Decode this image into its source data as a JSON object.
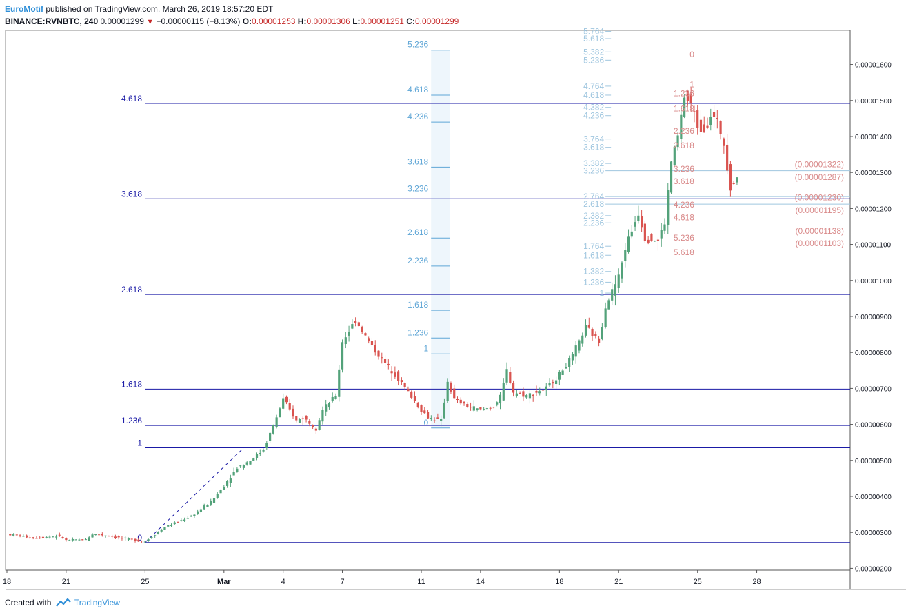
{
  "header": {
    "author": "EuroMotif",
    "published_text": "published on TradingView.com, March 26, 2019 18:57:20 EDT",
    "symbol": "BINANCE:RVNBTC, 240",
    "last": "0.00001299",
    "change": "−0.00000115 (−8.13%)",
    "o_label": "O:",
    "o_value": "0.00001253",
    "h_label": "H:",
    "h_value": "0.00001306",
    "l_label": "L:",
    "l_value": "0.00001251",
    "c_label": "C:",
    "c_value": "0.00001299"
  },
  "footer": {
    "created_with": "Created with",
    "brand": "TradingView"
  },
  "colors": {
    "up": "#53a27a",
    "down": "#d9534f",
    "fib_major": "#1a1aa6",
    "fib_mid": "#5fa6d6",
    "fib_pale": "#9fc6df",
    "fib_pink": "#d98a8a",
    "axis_text": "#131722",
    "grid_bg": "#ffffff",
    "highlight_band": "#eef6fc"
  },
  "chart_data": {
    "type": "candlestick",
    "symbol": "RVNBTC",
    "exchange": "BINANCE",
    "interval": "240",
    "ylim": [
      1.95e-06,
      1.695e-05
    ],
    "y_ticks": [
      "0.00001600",
      "0.00001500",
      "0.00001400",
      "0.00001300",
      "0.00001200",
      "0.00001100",
      "0.00001000",
      "0.00000900",
      "0.00000800",
      "0.00000700",
      "0.00000600",
      "0.00000500",
      "0.00000400",
      "0.00000300",
      "0.00000200"
    ],
    "y_tick_values": [
      1.6e-05,
      1.5e-05,
      1.4e-05,
      1.3e-05,
      1.2e-05,
      1.1e-05,
      1e-05,
      9e-06,
      8e-06,
      7e-06,
      6e-06,
      5e-06,
      4e-06,
      3e-06,
      2e-06
    ],
    "x_tick_labels": [
      "18",
      "21",
      "25",
      "Mar",
      "4",
      "7",
      "11",
      "14",
      "18",
      "21",
      "25",
      "28"
    ],
    "x_tick_bars": [
      0,
      18,
      42,
      66,
      84,
      102,
      126,
      144,
      168,
      186,
      210,
      228
    ],
    "bar_count": 240,
    "fib_extension_1": {
      "anchors": [
        {
          "bar": 42,
          "price": 2.72e-06
        },
        {
          "bar": 72,
          "price": 5.35e-06
        }
      ],
      "levels": [
        {
          "label": "0",
          "price": 2.72e-06
        },
        {
          "label": "1",
          "price": 5.35e-06
        },
        {
          "label": "1.236",
          "price": 5.97e-06
        },
        {
          "label": "1.618",
          "price": 6.98e-06
        },
        {
          "label": "2.618",
          "price": 9.61e-06
        },
        {
          "label": "3.618",
          "price": 1.227e-05
        },
        {
          "label": "4.618",
          "price": 1.492e-05
        }
      ]
    },
    "fib_extension_2": {
      "levels": [
        {
          "label": "0",
          "price": 5.9e-06
        },
        {
          "label": "1",
          "price": 7.96e-06
        },
        {
          "label": "1.236",
          "price": 8.4e-06
        },
        {
          "label": "1.618",
          "price": 9.17e-06
        },
        {
          "label": "2.236",
          "price": 1.04e-05
        },
        {
          "label": "2.618",
          "price": 1.118e-05
        },
        {
          "label": "3.236",
          "price": 1.24e-05
        },
        {
          "label": "3.618",
          "price": 1.315e-05
        },
        {
          "label": "4.236",
          "price": 1.44e-05
        },
        {
          "label": "4.618",
          "price": 1.515e-05
        },
        {
          "label": "5.236",
          "price": 1.64e-05
        }
      ]
    },
    "fib_extension_3": {
      "levels": [
        {
          "label": "1",
          "price": 9.65e-06
        },
        {
          "label": "1.236",
          "price": 9.95e-06
        },
        {
          "label": "1.382",
          "price": 1.025e-05
        },
        {
          "label": "1.618",
          "price": 1.07e-05
        },
        {
          "label": "1.764",
          "price": 1.095e-05
        },
        {
          "label": "2.236",
          "price": 1.16e-05
        },
        {
          "label": "2.382",
          "price": 1.18e-05
        },
        {
          "label": "2.618",
          "price": 1.212e-05
        },
        {
          "label": "2.764",
          "price": 1.233e-05
        },
        {
          "label": "3.236",
          "price": 1.305e-05
        },
        {
          "label": "3.382",
          "price": 1.325e-05
        },
        {
          "label": "3.618",
          "price": 1.37e-05
        },
        {
          "label": "3.764",
          "price": 1.393e-05
        },
        {
          "label": "4.236",
          "price": 1.458e-05
        },
        {
          "label": "4.382",
          "price": 1.481e-05
        },
        {
          "label": "4.618",
          "price": 1.515e-05
        },
        {
          "label": "4.764",
          "price": 1.54e-05
        },
        {
          "label": "5.236",
          "price": 1.612e-05
        },
        {
          "label": "5.382",
          "price": 1.635e-05
        },
        {
          "label": "5.618",
          "price": 1.672e-05
        },
        {
          "label": "5.764",
          "price": 1.692e-05
        }
      ]
    },
    "fib_retracement": {
      "levels": [
        {
          "label": "0",
          "price": 1.628e-05
        },
        {
          "label": "1",
          "price": 1.545e-05
        },
        {
          "label": "1.236",
          "price": 1.52e-05
        },
        {
          "label": "1.618",
          "price": 1.478e-05
        },
        {
          "label": "2.236",
          "price": 1.415e-05
        },
        {
          "label": "2.618",
          "price": 1.375e-05
        },
        {
          "label": "3.236",
          "price": 1.31e-05
        },
        {
          "label": "3.618",
          "price": 1.275e-05
        },
        {
          "label": "4.236",
          "price": 1.21e-05
        },
        {
          "label": "4.618",
          "price": 1.175e-05
        },
        {
          "label": "5.236",
          "price": 1.118e-05
        },
        {
          "label": "5.618",
          "price": 1.078e-05
        }
      ],
      "price_labels": [
        {
          "text": "(0.00001322)",
          "price": 1.322e-05
        },
        {
          "text": "(0.00001287)",
          "price": 1.287e-05
        },
        {
          "text": "(0.00001230)",
          "price": 1.23e-05
        },
        {
          "text": "(0.00001195)",
          "price": 1.195e-05
        },
        {
          "text": "(0.00001138)",
          "price": 1.138e-05
        },
        {
          "text": "(0.00001103)",
          "price": 1.103e-05
        }
      ]
    },
    "waypoints": [
      [
        0,
        2.95
      ],
      [
        8,
        2.85
      ],
      [
        16,
        2.9
      ],
      [
        18,
        2.78
      ],
      [
        24,
        2.8
      ],
      [
        26,
        2.95
      ],
      [
        30,
        2.92
      ],
      [
        36,
        2.82
      ],
      [
        42,
        2.75
      ],
      [
        48,
        3.15
      ],
      [
        56,
        3.45
      ],
      [
        62,
        3.85
      ],
      [
        66,
        4.3
      ],
      [
        70,
        4.8
      ],
      [
        74,
        5.0
      ],
      [
        78,
        5.3
      ],
      [
        82,
        6.2
      ],
      [
        84,
        6.7
      ],
      [
        88,
        6.1
      ],
      [
        90,
        6.2
      ],
      [
        94,
        5.9
      ],
      [
        96,
        6.4
      ],
      [
        100,
        6.8
      ],
      [
        102,
        8.3
      ],
      [
        106,
        8.9
      ],
      [
        110,
        8.3
      ],
      [
        114,
        7.8
      ],
      [
        118,
        7.4
      ],
      [
        122,
        6.9
      ],
      [
        126,
        6.4
      ],
      [
        128,
        6.2
      ],
      [
        132,
        6.1
      ],
      [
        134,
        7.2
      ],
      [
        136,
        6.7
      ],
      [
        140,
        6.5
      ],
      [
        144,
        6.4
      ],
      [
        148,
        6.5
      ],
      [
        150,
        6.75
      ],
      [
        152,
        7.5
      ],
      [
        154,
        6.9
      ],
      [
        158,
        6.8
      ],
      [
        164,
        7.0
      ],
      [
        168,
        7.4
      ],
      [
        172,
        7.9
      ],
      [
        176,
        8.7
      ],
      [
        180,
        8.3
      ],
      [
        182,
        9.3
      ],
      [
        186,
        10.1
      ],
      [
        188,
        10.9
      ],
      [
        192,
        11.9
      ],
      [
        194,
        11.2
      ],
      [
        198,
        11.1
      ],
      [
        200,
        11.6
      ],
      [
        202,
        13.3
      ],
      [
        204,
        14.0
      ],
      [
        206,
        15.1
      ],
      [
        208,
        14.9
      ],
      [
        210,
        14.3
      ],
      [
        212,
        14.2
      ],
      [
        214,
        14.6
      ],
      [
        216,
        14.4
      ],
      [
        218,
        13.8
      ],
      [
        220,
        12.6
      ],
      [
        222,
        12.9
      ]
    ],
    "x_note": "price waypoints in units of 1e-6 BTC; intermediate bars interpolated"
  }
}
